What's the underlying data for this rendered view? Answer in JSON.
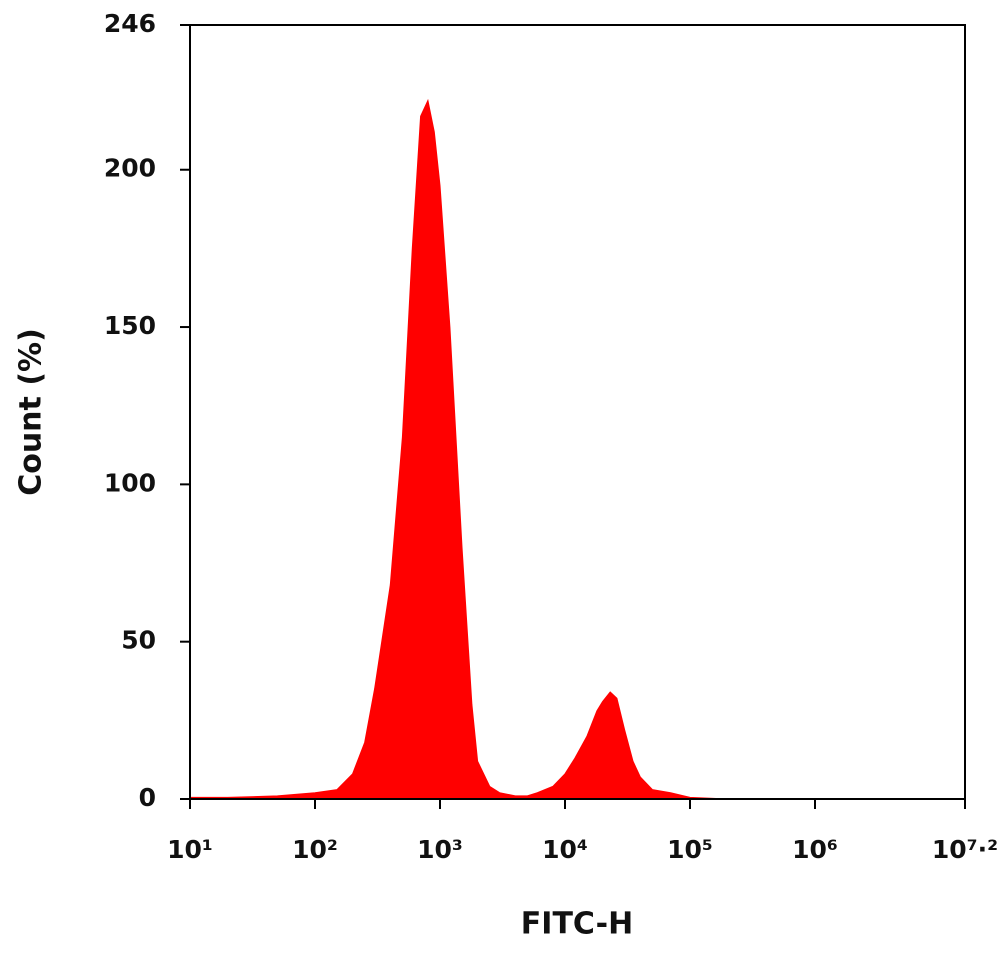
{
  "chart_data": {
    "type": "area",
    "x_label": "FITC-H",
    "y_label": "Count (%)",
    "x": [
      10,
      20,
      50,
      100,
      150,
      200,
      250,
      300,
      400,
      500,
      600,
      700,
      800,
      900,
      1000,
      1200,
      1500,
      1800,
      2000,
      2500,
      3000,
      4000,
      5000,
      6000,
      8000,
      10000,
      12000,
      15000,
      18000,
      20000,
      23000,
      26000,
      30000,
      35000,
      40000,
      50000,
      70000,
      100000,
      200000,
      15848932
    ],
    "values": [
      0.5,
      0.5,
      1,
      2,
      3,
      8,
      18,
      35,
      68,
      115,
      175,
      217,
      222,
      212,
      195,
      150,
      80,
      30,
      12,
      4,
      2,
      1,
      1,
      2,
      4,
      8,
      13,
      20,
      28,
      31,
      34,
      32,
      22,
      12,
      7,
      3,
      2,
      0.5,
      0,
      0
    ],
    "color": "#ff0000",
    "xscale": "log",
    "xlim": [
      10,
      15848932
    ],
    "xticks": [
      {
        "value": 10,
        "label": "10¹"
      },
      {
        "value": 100,
        "label": "10²"
      },
      {
        "value": 1000,
        "label": "10³"
      },
      {
        "value": 10000,
        "label": "10⁴"
      },
      {
        "value": 100000,
        "label": "10⁵"
      },
      {
        "value": 1000000,
        "label": "10⁶"
      },
      {
        "value": 15848932,
        "label": "10⁷·²"
      }
    ],
    "ylim": [
      0,
      246
    ],
    "yticks": [
      0,
      50,
      100,
      150,
      200,
      246
    ]
  }
}
